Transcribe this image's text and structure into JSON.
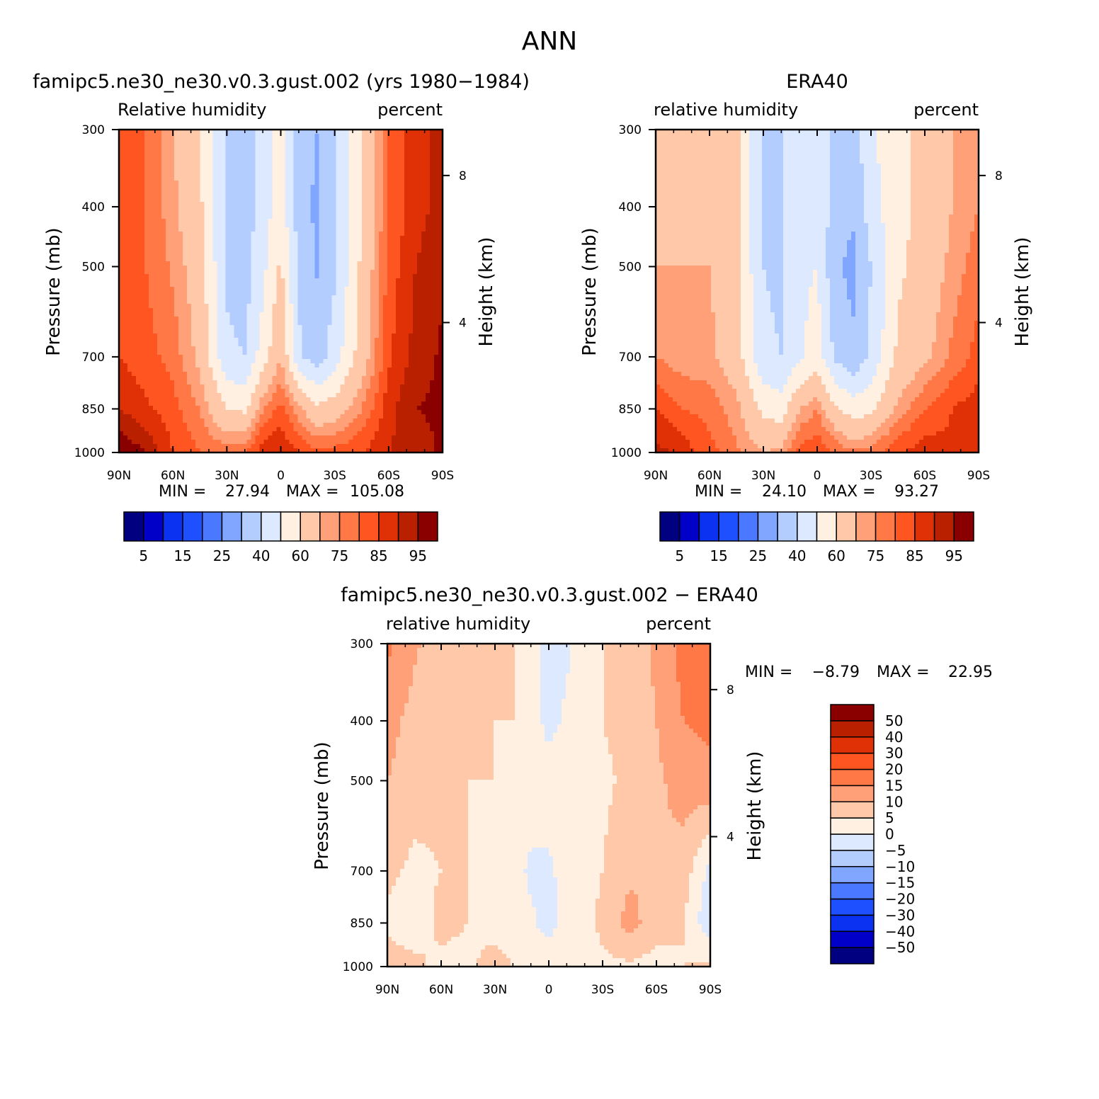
{
  "figure": {
    "season_title": "ANN"
  },
  "colors": {
    "field": [
      "#000080",
      "#0000c8",
      "#0a32f0",
      "#1e50ff",
      "#4a78ff",
      "#80a6ff",
      "#b4cdff",
      "#dce9ff",
      "#fff0e1",
      "#ffc8a8",
      "#ffa079",
      "#ff7845",
      "#ff5521",
      "#e03005",
      "#b82000",
      "#8a0000"
    ],
    "diff": [
      "#000080",
      "#0000c8",
      "#0a32f0",
      "#1e50ff",
      "#4a78ff",
      "#80a6ff",
      "#b4cdff",
      "#dce9ff",
      "#fff0e1",
      "#ffc8a8",
      "#ffa079",
      "#ff7845",
      "#ff5521",
      "#e03005",
      "#b82000",
      "#8a0000"
    ]
  },
  "chart_data": [
    {
      "type": "heatmap",
      "panel": "model",
      "title": "famipc5.ne30_ne30.v0.3.gust.002 (yrs 1980−1984)",
      "left_label": "Relative humidity",
      "right_label": "percent",
      "ylabel": "Pressure (mb)",
      "ylabel_right": "Height (km)",
      "x_ticks": [
        "90N",
        "60N",
        "30N",
        "0",
        "30S",
        "60S",
        "90S"
      ],
      "y_ticks": [
        "300",
        "400",
        "500",
        "700",
        "850",
        "1000"
      ],
      "y_right_ticks": [
        "8",
        "4"
      ],
      "xlim": [
        90,
        -90
      ],
      "ylim": [
        1000,
        300
      ],
      "stats": {
        "min_label": "MIN =",
        "min": "27.94",
        "max_label": "MAX =",
        "max": "105.08"
      },
      "levels": [
        5,
        10,
        15,
        20,
        25,
        30,
        40,
        50,
        60,
        70,
        75,
        80,
        85,
        90,
        95
      ],
      "level_labels": [
        "5",
        "15",
        "25",
        "40",
        "60",
        "75",
        "85",
        "95"
      ],
      "x": [
        90,
        75,
        60,
        45,
        30,
        20,
        10,
        0,
        -10,
        -20,
        -30,
        -45,
        -60,
        -75,
        -90
      ],
      "y": [
        300,
        400,
        500,
        700,
        850,
        1000
      ],
      "z": [
        [
          80,
          80,
          70,
          60,
          40,
          35,
          45,
          55,
          35,
          30,
          40,
          60,
          80,
          88,
          92
        ],
        [
          80,
          80,
          72,
          62,
          38,
          35,
          45,
          55,
          35,
          28,
          38,
          60,
          80,
          88,
          92
        ],
        [
          82,
          80,
          74,
          65,
          38,
          35,
          47,
          62,
          38,
          29,
          38,
          62,
          82,
          90,
          94
        ],
        [
          85,
          82,
          78,
          68,
          42,
          40,
          55,
          70,
          42,
          35,
          45,
          65,
          84,
          92,
          96
        ],
        [
          90,
          86,
          82,
          75,
          60,
          58,
          75,
          82,
          72,
          62,
          65,
          75,
          88,
          95,
          96
        ],
        [
          100,
          95,
          85,
          80,
          78,
          80,
          88,
          90,
          85,
          82,
          82,
          85,
          90,
          92,
          96
        ]
      ]
    },
    {
      "type": "heatmap",
      "panel": "obs",
      "title": "ERA40",
      "left_label": "relative humidity",
      "right_label": "percent",
      "ylabel": "Pressure (mb)",
      "ylabel_right": "Height (km)",
      "x_ticks": [
        "90N",
        "60N",
        "30N",
        "0",
        "30S",
        "60S",
        "90S"
      ],
      "y_ticks": [
        "300",
        "400",
        "500",
        "700",
        "850",
        "1000"
      ],
      "y_right_ticks": [
        "8",
        "4"
      ],
      "xlim": [
        90,
        -90
      ],
      "ylim": [
        1000,
        300
      ],
      "stats": {
        "min_label": "MIN =",
        "min": "24.10",
        "max_label": "MAX =",
        "max": "93.27"
      },
      "levels": [
        5,
        10,
        15,
        20,
        25,
        30,
        40,
        50,
        60,
        70,
        75,
        80,
        85,
        90,
        95
      ],
      "level_labels": [
        "5",
        "15",
        "25",
        "40",
        "60",
        "75",
        "85",
        "95"
      ],
      "x": [
        90,
        75,
        60,
        45,
        30,
        20,
        10,
        0,
        -10,
        -20,
        -30,
        -45,
        -60,
        -75,
        -90
      ],
      "y": [
        300,
        400,
        500,
        700,
        850,
        1000
      ],
      "z": [
        [
          65,
          68,
          68,
          62,
          40,
          38,
          48,
          48,
          38,
          35,
          48,
          58,
          62,
          70,
          75
        ],
        [
          68,
          68,
          68,
          62,
          40,
          38,
          48,
          48,
          35,
          32,
          45,
          58,
          62,
          70,
          75
        ],
        [
          70,
          70,
          70,
          62,
          40,
          38,
          48,
          50,
          32,
          27,
          40,
          58,
          64,
          72,
          78
        ],
        [
          75,
          72,
          72,
          65,
          42,
          40,
          48,
          55,
          38,
          32,
          42,
          62,
          68,
          76,
          82
        ],
        [
          85,
          80,
          78,
          72,
          58,
          55,
          70,
          75,
          62,
          55,
          58,
          72,
          80,
          85,
          88
        ],
        [
          92,
          88,
          82,
          76,
          70,
          72,
          82,
          84,
          80,
          76,
          78,
          84,
          88,
          86,
          90
        ]
      ]
    },
    {
      "type": "heatmap",
      "panel": "difference",
      "title": "famipc5.ne30_ne30.v0.3.gust.002 − ERA40",
      "left_label": "relative humidity",
      "right_label": "percent",
      "ylabel": "Pressure (mb)",
      "ylabel_right": "Height (km)",
      "x_ticks": [
        "90N",
        "60N",
        "30N",
        "0",
        "30S",
        "60S",
        "90S"
      ],
      "y_ticks": [
        "300",
        "400",
        "500",
        "700",
        "850",
        "1000"
      ],
      "y_right_ticks": [
        "8",
        "4"
      ],
      "xlim": [
        90,
        -90
      ],
      "ylim": [
        1000,
        300
      ],
      "stats": {
        "min_label": "MIN =",
        "min": "−8.79",
        "max_label": "MAX =",
        "max": "22.95"
      },
      "levels": [
        -50,
        -40,
        -30,
        -20,
        -15,
        -10,
        -5,
        0,
        5,
        10,
        15,
        20,
        30,
        40,
        50
      ],
      "level_labels": [
        "50",
        "40",
        "30",
        "20",
        "15",
        "10",
        "5",
        "0",
        "−5",
        "−10",
        "−15",
        "−20",
        "−30",
        "−40",
        "−50"
      ],
      "x": [
        90,
        75,
        60,
        45,
        30,
        20,
        10,
        0,
        -10,
        -20,
        -30,
        -45,
        -60,
        -75,
        -90
      ],
      "y": [
        300,
        400,
        500,
        700,
        850,
        1000
      ],
      "z": [
        [
          16,
          11,
          6,
          6,
          6,
          5,
          3,
          -3,
          -1,
          3,
          5,
          7,
          11,
          17,
          18
        ],
        [
          12,
          8,
          6,
          6,
          5,
          5,
          3,
          -2,
          1,
          4,
          5,
          7,
          10,
          15,
          16
        ],
        [
          10,
          7,
          6,
          5,
          5,
          4,
          3,
          3,
          4,
          3,
          4,
          6,
          9,
          12,
          14
        ],
        [
          6,
          4,
          5,
          5,
          3,
          2,
          -1,
          -1,
          2,
          3,
          5,
          9,
          10,
          8,
          -2
        ],
        [
          4,
          3,
          6,
          5,
          3,
          2,
          1,
          -2,
          2,
          4,
          6,
          12,
          7,
          5,
          -4
        ],
        [
          7,
          6,
          4,
          4,
          7,
          5,
          2,
          3,
          3,
          3,
          4,
          4,
          3,
          5,
          6
        ]
      ]
    }
  ]
}
